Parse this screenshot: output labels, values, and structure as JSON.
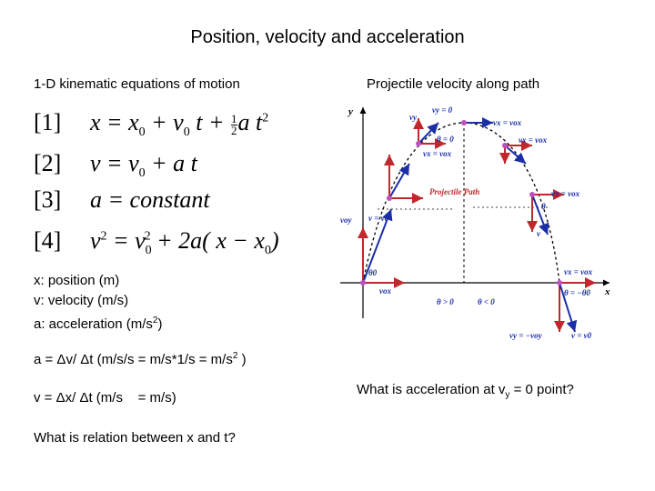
{
  "title": "Position, velocity and acceleration",
  "left": {
    "heading": "1-D kinematic equations of motion",
    "equations": [
      {
        "number": "[1]",
        "lhs": "x",
        "rhs_a": "= x",
        "sub_a": "0",
        "rhs_b": " + v",
        "sub_b": "0",
        "rhs_c": " t + ",
        "frac_top": "1",
        "frac_bot": "2",
        "rhs_d": "a t",
        "sup": "2"
      },
      {
        "number": "[2]",
        "text": "v = v",
        "sub": "0",
        "tail": " + a t"
      },
      {
        "number": "[3]",
        "text": "a =  constant"
      },
      {
        "number": "[4]",
        "text": "v",
        "sup1": "2",
        "mid": " = v",
        "sub": "0",
        "sup2": "2",
        "tail": " + 2a( x − x",
        "sub2": "0",
        "end": ")"
      }
    ],
    "definitions": [
      "x: position (m)",
      "v: velocity (m/s)",
      "a: acceleration (m/s"
    ],
    "accel_sup": "2",
    "accel_close": ")",
    "accel_line": "a = Δv/ Δt (m/s/s = m/s*1/s = m/s",
    "accel_line_sup": "2",
    "accel_line_end": " )",
    "vel_line": "v = Δx/ Δt (m/s    = m/s)",
    "question": "What is relation between x and t?"
  },
  "right": {
    "heading": "Projectile velocity along path",
    "question_pre": "What is acceleration at v",
    "question_sub": "y",
    "question_post": " = 0 point?",
    "diagram": {
      "y_axis": "y",
      "x_axis": "x",
      "path_label": "Projectile Path",
      "labels": {
        "vy0_top": "vy = 0",
        "theta0_top": "θ = 0",
        "vx_vox_top": "vx = vox",
        "vx_vox_top_right": "vx = vox",
        "vx_vox_mid": "vx = vox",
        "vx_vox_right": "vx = vox",
        "vx_vox_r2": "vx = vox",
        "v_v0": "v = v0",
        "v_v0_end": "v = v0",
        "voy": "voy",
        "vox": "vox",
        "theta0": "θ0",
        "theta_end": "θ = −θ0",
        "theta_gt": "θ > 0",
        "theta_lt": "θ < 0",
        "vy_end": "vy = −voy",
        "vy": "vy",
        "v": "v",
        "theta": "θ"
      }
    }
  }
}
